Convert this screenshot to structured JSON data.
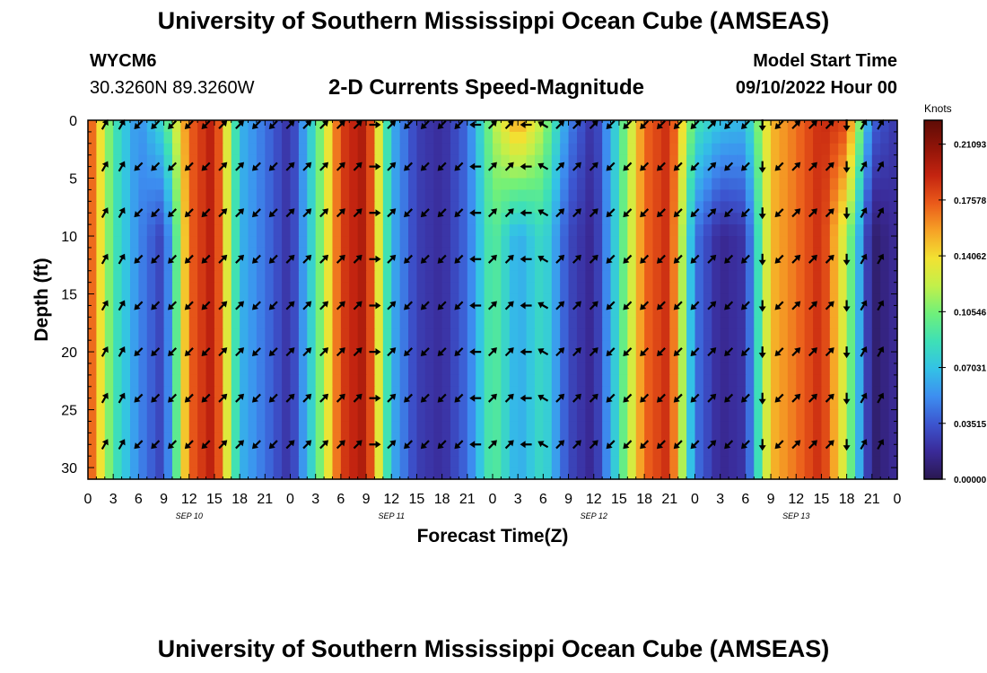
{
  "header": {
    "title": "University of Southern Mississippi Ocean Cube (AMSEAS)",
    "station_id": "WYCM6",
    "coordinates": "30.3260N  89.3260W",
    "subtitle": "2-D Currents Speed-Magnitude",
    "model_start_label": "Model Start Time",
    "model_start_value": "09/10/2022 Hour 00"
  },
  "footer": {
    "title": "University of Southern Mississippi Ocean Cube (AMSEAS)"
  },
  "colors": {
    "colormap": [
      "#2a1850",
      "#3a2a98",
      "#3c55cf",
      "#3d8ef0",
      "#33c2e6",
      "#3ee0b6",
      "#6ff07a",
      "#c2f04a",
      "#f2e232",
      "#f6a226",
      "#ea5a1a",
      "#c42410",
      "#901408",
      "#5e0c06"
    ]
  },
  "chart_data": {
    "type": "heatmap",
    "xlabel": "Forecast Time(Z)",
    "ylabel": "Depth (ft)",
    "x_ticks": [
      "0",
      "3",
      "6",
      "9",
      "12",
      "15",
      "18",
      "21",
      "0",
      "3",
      "6",
      "9",
      "12",
      "15",
      "18",
      "21",
      "0",
      "3",
      "6",
      "9",
      "12",
      "15",
      "18",
      "21",
      "0",
      "3",
      "6",
      "9",
      "12",
      "15",
      "18",
      "21",
      "0"
    ],
    "x_tick_hours": [
      0,
      3,
      6,
      9,
      12,
      15,
      18,
      21,
      24,
      27,
      30,
      33,
      36,
      39,
      42,
      45,
      48,
      51,
      54,
      57,
      60,
      63,
      66,
      69,
      72,
      75,
      78,
      81,
      84,
      87,
      90,
      93,
      96
    ],
    "xlim_hours": [
      0,
      96
    ],
    "date_labels": [
      {
        "hour": 12,
        "text": "SEP 10"
      },
      {
        "hour": 36,
        "text": "SEP 11"
      },
      {
        "hour": 60,
        "text": "SEP 12"
      },
      {
        "hour": 84,
        "text": "SEP 13"
      }
    ],
    "y_ticks": [
      "0",
      "5",
      "10",
      "15",
      "20",
      "25",
      "30"
    ],
    "y_tick_values": [
      0,
      5,
      10,
      15,
      20,
      25,
      30
    ],
    "ylim": [
      0,
      31
    ],
    "colorbar": {
      "unit": "Knots",
      "vmin": 0.0,
      "vmax": 0.226,
      "ticks": [
        0.21093,
        0.17578,
        0.14062,
        0.10546,
        0.07031,
        0.03515,
        0.0
      ],
      "tick_labels": [
        "0.21093",
        "0.17578",
        "0.14062",
        "0.10546",
        "0.07031",
        "0.03515",
        "0.00000"
      ]
    },
    "speed_surface_knots": [
      0.185,
      0.092,
      0.051,
      0.085,
      0.171,
      0.198,
      0.066,
      0.044,
      0.019,
      0.091,
      0.182,
      0.201,
      0.065,
      0.026,
      0.018,
      0.042,
      0.115,
      0.16,
      0.118,
      0.05,
      0.018,
      0.087,
      0.17,
      0.19,
      0.09,
      0.07,
      0.066,
      0.15,
      0.168,
      0.19,
      0.18,
      0.04,
      0.022
    ],
    "speed_deep_knots": [
      0.185,
      0.092,
      0.051,
      0.025,
      0.171,
      0.198,
      0.066,
      0.044,
      0.019,
      0.091,
      0.182,
      0.201,
      0.065,
      0.026,
      0.018,
      0.042,
      0.1,
      0.06,
      0.085,
      0.03,
      0.014,
      0.087,
      0.17,
      0.19,
      0.045,
      0.015,
      0.022,
      0.15,
      0.168,
      0.19,
      0.12,
      0.006,
      0.018
    ],
    "arrow_depths_ft": [
      0,
      4,
      8,
      12,
      16,
      20,
      24,
      28
    ],
    "arrow_hours": [
      2,
      4,
      6,
      8,
      10,
      12,
      14,
      16,
      18,
      20,
      22,
      24,
      26,
      28,
      30,
      32,
      34,
      36,
      38,
      40,
      42,
      44,
      46,
      48,
      50,
      52,
      54,
      56,
      58,
      60,
      62,
      64,
      66,
      68,
      70,
      72,
      74,
      76,
      78,
      80,
      82,
      84,
      86,
      88,
      90,
      92,
      94
    ],
    "arrow_direction_deg_by_hour": [
      60,
      60,
      225,
      225,
      225,
      225,
      225,
      45,
      45,
      225,
      225,
      45,
      45,
      45,
      45,
      45,
      0,
      45,
      225,
      225,
      225,
      225,
      180,
      45,
      45,
      180,
      150,
      45,
      45,
      45,
      225,
      225,
      225,
      225,
      225,
      225,
      45,
      225,
      225,
      270,
      225,
      45,
      45,
      45,
      270,
      60,
      60
    ]
  }
}
